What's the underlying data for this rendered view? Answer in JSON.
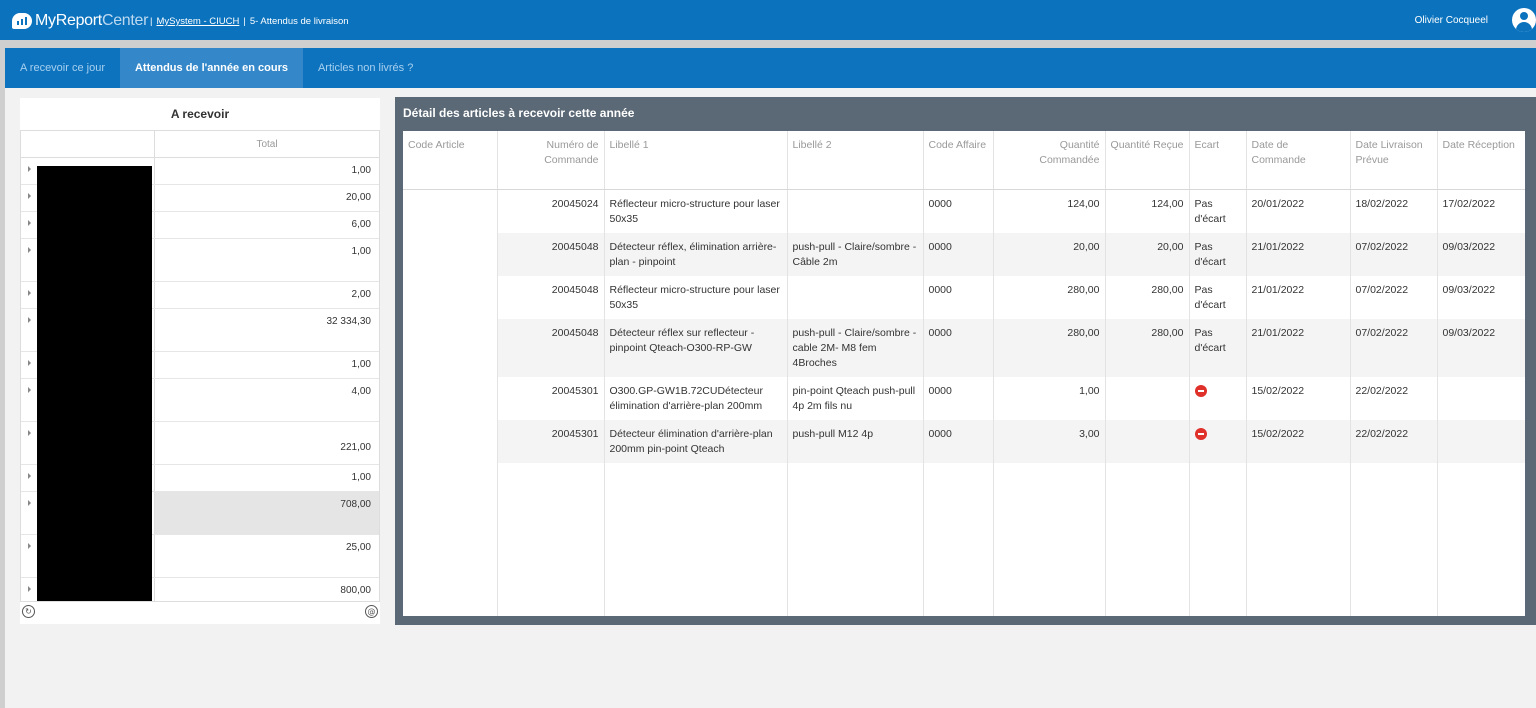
{
  "app": {
    "logo_main": "MyReport",
    "logo_sub": "Center",
    "breadcrumb_system": "MySystem - CIUCH",
    "breadcrumb_page": "5- Attendus de livraison",
    "user_name": "Olivier Cocqueel",
    "brand_color": "#0b72bd"
  },
  "tabs": [
    {
      "label": "A recevoir ce jour",
      "active": false
    },
    {
      "label": "Attendus de l'année en cours",
      "active": true
    },
    {
      "label": "Articles non livrés ?",
      "active": false
    }
  ],
  "left_panel": {
    "title": "A recevoir",
    "column_total": "Total",
    "rows": [
      {
        "total": "1,00"
      },
      {
        "total": "20,00"
      },
      {
        "total": "6,00"
      },
      {
        "total": "1,00"
      },
      {
        "total": "2,00"
      },
      {
        "total": "32 334,30"
      },
      {
        "total": "1,00"
      },
      {
        "total": "4,00"
      },
      {
        "total": "221,00"
      },
      {
        "total": "1,00"
      },
      {
        "total": "708,00"
      },
      {
        "total": "25,00"
      },
      {
        "total": "800,00"
      }
    ],
    "footer_left_icon": "refresh-icon",
    "footer_right_icon": "zoom-icon"
  },
  "right_panel": {
    "title": "Détail des articles à recevoir cette année",
    "headers": {
      "code_article": "Code Article",
      "numero_commande": "Numéro de Commande",
      "libelle1": "Libellé 1",
      "libelle2": "Libellé 2",
      "code_affaire": "Code Affaire",
      "qte_commandee": "Quantité Commandée",
      "qte_recue": "Quantité Reçue",
      "ecart": "Ecart",
      "date_commande": "Date de Commande",
      "date_livraison": "Date Livraison Prévue",
      "date_reception": "Date Réception"
    },
    "rows": [
      {
        "code_article": "",
        "numero": "20045024",
        "libelle1": "Réflecteur micro-structure pour laser 50x35",
        "libelle2": "",
        "affaire": "0000",
        "qte_cmd": "124,00",
        "qte_recue": "124,00",
        "ecart": "Pas d'écart",
        "date_cmd": "20/01/2022",
        "date_liv": "18/02/2022",
        "date_rec": "17/02/2022"
      },
      {
        "code_article": "",
        "numero": "20045048",
        "libelle1": "Détecteur réflex, élimination arrière-plan - pinpoint",
        "libelle2": "push-pull - Claire/sombre - Câble 2m",
        "affaire": "0000",
        "qte_cmd": "20,00",
        "qte_recue": "20,00",
        "ecart": "Pas d'écart",
        "date_cmd": "21/01/2022",
        "date_liv": "07/02/2022",
        "date_rec": "09/03/2022"
      },
      {
        "code_article": "",
        "numero": "20045048",
        "libelle1": "Réflecteur micro-structure pour laser 50x35",
        "libelle2": "",
        "affaire": "0000",
        "qte_cmd": "280,00",
        "qte_recue": "280,00",
        "ecart": "Pas d'écart",
        "date_cmd": "21/01/2022",
        "date_liv": "07/02/2022",
        "date_rec": "09/03/2022"
      },
      {
        "code_article": "",
        "numero": "20045048",
        "libelle1": "Détecteur réflex sur reflecteur - pinpoint Qteach-O300-RP-GW",
        "libelle2": "push-pull - Claire/sombre -cable 2M- M8 fem 4Broches",
        "affaire": "0000",
        "qte_cmd": "280,00",
        "qte_recue": "280,00",
        "ecart": "Pas d'écart",
        "date_cmd": "21/01/2022",
        "date_liv": "07/02/2022",
        "date_rec": "09/03/2022"
      },
      {
        "code_article": "",
        "numero": "20045301",
        "libelle1": "O300.GP-GW1B.72CUDétecteur élimination d'arrière-plan 200mm",
        "libelle2": "pin-point Qteach push-pull 4p 2m fils nu",
        "affaire": "0000",
        "qte_cmd": "1,00",
        "qte_recue": "",
        "ecart": "",
        "ecart_icon": "no-entry-icon",
        "date_cmd": "15/02/2022",
        "date_liv": "22/02/2022",
        "date_rec": ""
      },
      {
        "code_article": "",
        "numero": "20045301",
        "libelle1": "Détecteur élimination d'arrière-plan 200mm pin-point Qteach",
        "libelle2": "push-pull M12 4p",
        "affaire": "0000",
        "qte_cmd": "3,00",
        "qte_recue": "",
        "ecart": "",
        "ecart_icon": "no-entry-icon",
        "date_cmd": "15/02/2022",
        "date_liv": "22/02/2022",
        "date_rec": ""
      }
    ]
  }
}
